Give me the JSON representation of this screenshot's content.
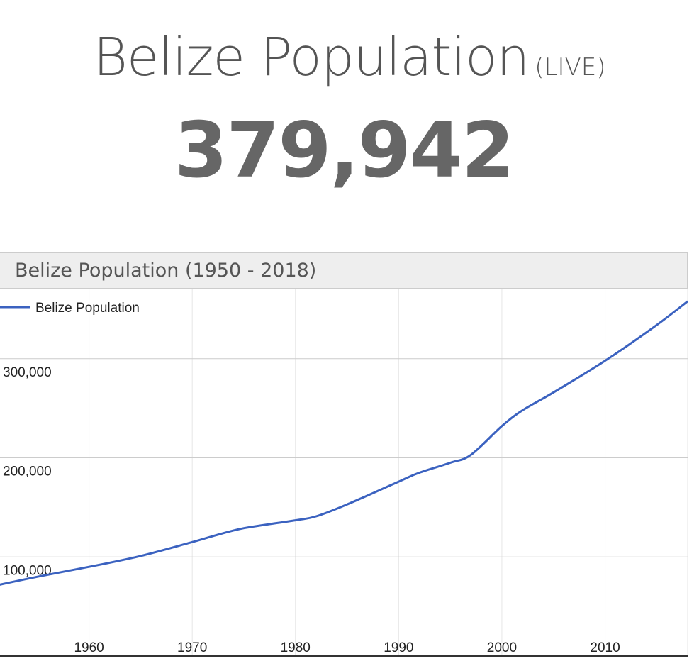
{
  "header": {
    "title": "Belize Population",
    "live_tag": "(LIVE)",
    "counter": "379,942"
  },
  "panel": {
    "title": "Belize Population (1950 - 2018)"
  },
  "colors": {
    "series_line": "#3b62c0",
    "grid": "#d9d9d9",
    "counter_text": "#666666"
  },
  "chart_data": {
    "type": "line",
    "title": "Belize Population (1950 - 2018)",
    "legend": {
      "position": "top-left",
      "entries": [
        "Belize Population"
      ]
    },
    "grid": true,
    "xlim": [
      1950,
      2018
    ],
    "ylim": [
      0,
      370000
    ],
    "x_ticks": [
      1960,
      1970,
      1980,
      1990,
      2000,
      2010
    ],
    "x_tick_labels": [
      "1960",
      "1970",
      "1980",
      "1990",
      "2000",
      "2010"
    ],
    "y_ticks": [
      100000,
      200000,
      300000
    ],
    "y_tick_labels": [
      "100,000",
      "200,000",
      "300,000"
    ],
    "series": [
      {
        "name": "Belize Population",
        "x": [
          1950,
          1955,
          1960,
          1965,
          1970,
          1972,
          1975,
          1980,
          1982,
          1985,
          1990,
          1992,
          1995,
          1997,
          2000,
          2002,
          2005,
          2010,
          2015,
          2018
        ],
        "values": [
          69000,
          80000,
          90000,
          101000,
          115000,
          121000,
          129000,
          137000,
          141000,
          153000,
          176000,
          185000,
          195000,
          203000,
          232000,
          248000,
          266000,
          298000,
          334000,
          358000
        ]
      }
    ]
  }
}
